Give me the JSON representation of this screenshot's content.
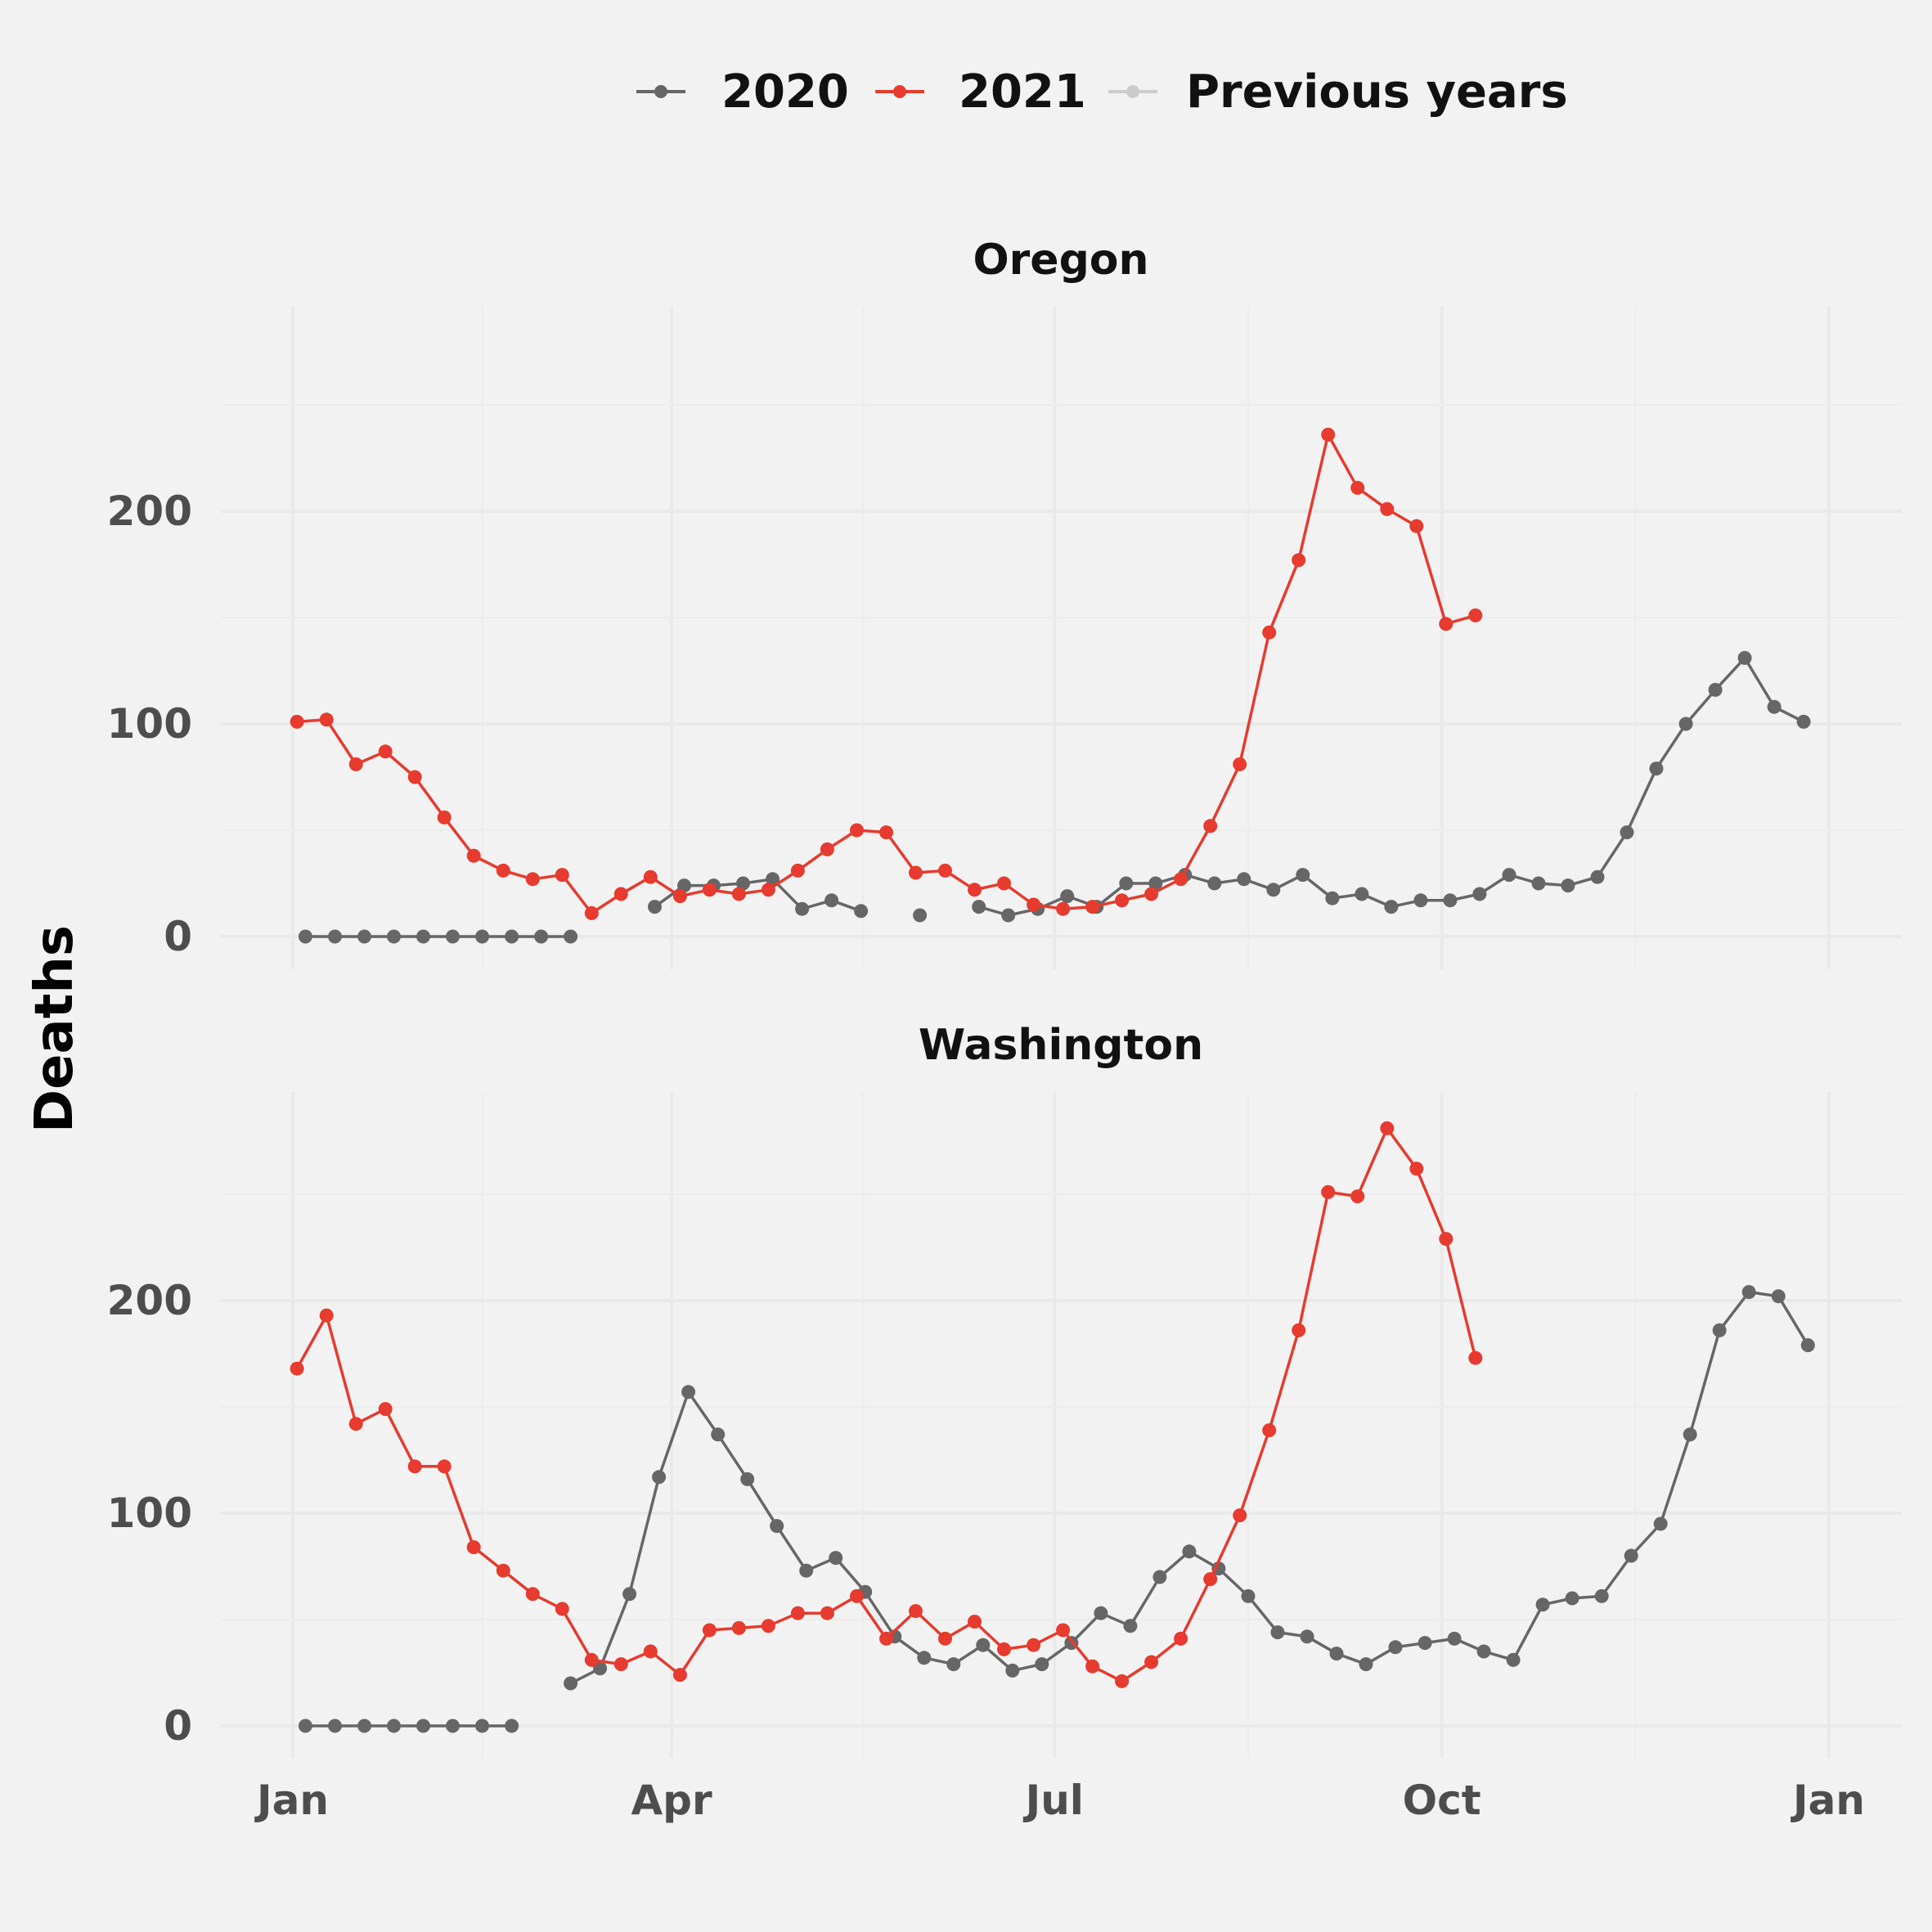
{
  "chart_data": {
    "type": "line",
    "ylabel": "Deaths",
    "xlabel": "",
    "x_axis": {
      "tick_labels": [
        "Jan",
        "Apr",
        "Jul",
        "Oct",
        "Jan"
      ],
      "tick_dates": [
        "2021-01-01",
        "2021-04-01",
        "2021-07-01",
        "2021-10-01",
        "2022-01-01"
      ]
    },
    "y_axis": {
      "tick_labels": [
        "0",
        "100",
        "200"
      ],
      "ticks": [
        0,
        100,
        200
      ],
      "ylim": [
        -15,
        295
      ]
    },
    "grid": true,
    "legend": {
      "position": "top",
      "entries": [
        {
          "label": "2020",
          "color": "#666666"
        },
        {
          "label": "2021",
          "color": "#e63b2e"
        },
        {
          "label": "Previous years",
          "color": "#cccccc"
        }
      ]
    },
    "panels": [
      {
        "title": "Oregon",
        "series": [
          {
            "name": "2020",
            "color": "#666666",
            "points": [
              [
                "2021-01-04",
                0
              ],
              [
                "2021-01-11",
                0
              ],
              [
                "2021-01-18",
                0
              ],
              [
                "2021-01-25",
                0
              ],
              [
                "2021-02-01",
                0
              ],
              [
                "2021-02-08",
                0
              ],
              [
                "2021-02-15",
                0
              ],
              [
                "2021-02-22",
                0
              ],
              [
                "2021-03-01",
                0
              ],
              [
                "2021-03-08",
                0
              ],
              null,
              [
                "2021-03-28",
                14
              ],
              [
                "2021-04-04",
                24
              ],
              [
                "2021-04-11",
                24
              ],
              [
                "2021-04-18",
                25
              ],
              [
                "2021-04-25",
                27
              ],
              [
                "2021-05-02",
                13
              ],
              [
                "2021-05-09",
                17
              ],
              [
                "2021-05-16",
                12
              ],
              null,
              [
                "2021-05-30",
                10
              ],
              null,
              [
                "2021-06-13",
                14
              ],
              [
                "2021-06-20",
                10
              ],
              [
                "2021-06-27",
                13
              ],
              [
                "2021-07-04",
                19
              ],
              [
                "2021-07-11",
                14
              ],
              [
                "2021-07-18",
                25
              ],
              [
                "2021-07-25",
                25
              ],
              [
                "2021-08-01",
                29
              ],
              [
                "2021-08-08",
                25
              ],
              [
                "2021-08-15",
                27
              ],
              [
                "2021-08-22",
                22
              ],
              [
                "2021-08-29",
                29
              ],
              [
                "2021-09-05",
                18
              ],
              [
                "2021-09-12",
                20
              ],
              [
                "2021-09-19",
                14
              ],
              [
                "2021-09-26",
                17
              ],
              [
                "2021-10-03",
                17
              ],
              [
                "2021-10-10",
                20
              ],
              [
                "2021-10-17",
                29
              ],
              [
                "2021-10-24",
                25
              ],
              [
                "2021-10-31",
                24
              ],
              [
                "2021-11-07",
                28
              ],
              [
                "2021-11-14",
                49
              ],
              [
                "2021-11-21",
                79
              ],
              [
                "2021-11-28",
                100
              ],
              [
                "2021-12-05",
                116
              ],
              [
                "2021-12-12",
                131
              ],
              [
                "2021-12-19",
                108
              ],
              [
                "2021-12-26",
                101
              ]
            ]
          },
          {
            "name": "2021",
            "color": "#e63b2e",
            "points": [
              [
                "2021-01-02",
                101
              ],
              [
                "2021-01-09",
                102
              ],
              [
                "2021-01-16",
                81
              ],
              [
                "2021-01-23",
                87
              ],
              [
                "2021-01-30",
                75
              ],
              [
                "2021-02-06",
                56
              ],
              [
                "2021-02-13",
                38
              ],
              [
                "2021-02-20",
                31
              ],
              [
                "2021-02-27",
                27
              ],
              [
                "2021-03-06",
                29
              ],
              [
                "2021-03-13",
                11
              ],
              [
                "2021-03-20",
                20
              ],
              [
                "2021-03-27",
                28
              ],
              [
                "2021-04-03",
                19
              ],
              [
                "2021-04-10",
                22
              ],
              [
                "2021-04-17",
                20
              ],
              [
                "2021-04-24",
                22
              ],
              [
                "2021-05-01",
                31
              ],
              [
                "2021-05-08",
                41
              ],
              [
                "2021-05-15",
                50
              ],
              [
                "2021-05-22",
                49
              ],
              [
                "2021-05-29",
                30
              ],
              [
                "2021-06-05",
                31
              ],
              [
                "2021-06-12",
                22
              ],
              [
                "2021-06-19",
                25
              ],
              [
                "2021-06-26",
                15
              ],
              [
                "2021-07-03",
                13
              ],
              [
                "2021-07-10",
                14
              ],
              [
                "2021-07-17",
                17
              ],
              [
                "2021-07-24",
                20
              ],
              [
                "2021-07-31",
                27
              ],
              [
                "2021-08-07",
                52
              ],
              [
                "2021-08-14",
                81
              ],
              [
                "2021-08-21",
                143
              ],
              [
                "2021-08-28",
                177
              ],
              [
                "2021-09-04",
                236
              ],
              [
                "2021-09-11",
                211
              ],
              [
                "2021-09-18",
                201
              ],
              [
                "2021-09-25",
                193
              ],
              [
                "2021-10-02",
                147
              ],
              [
                "2021-10-09",
                151
              ]
            ]
          }
        ]
      },
      {
        "title": "Washington",
        "series": [
          {
            "name": "2020",
            "color": "#666666",
            "points": [
              [
                "2021-01-04",
                0
              ],
              [
                "2021-01-11",
                0
              ],
              [
                "2021-01-18",
                0
              ],
              [
                "2021-01-25",
                0
              ],
              [
                "2021-02-01",
                0
              ],
              [
                "2021-02-08",
                0
              ],
              [
                "2021-02-15",
                0
              ],
              [
                "2021-02-22",
                0
              ],
              null,
              [
                "2021-03-08",
                20
              ],
              [
                "2021-03-15",
                27
              ],
              [
                "2021-03-22",
                62
              ],
              [
                "2021-03-29",
                117
              ],
              [
                "2021-04-05",
                157
              ],
              [
                "2021-04-12",
                137
              ],
              [
                "2021-04-19",
                116
              ],
              [
                "2021-04-26",
                94
              ],
              [
                "2021-05-03",
                73
              ],
              [
                "2021-05-10",
                79
              ],
              [
                "2021-05-17",
                63
              ],
              [
                "2021-05-24",
                42
              ],
              [
                "2021-05-31",
                32
              ],
              [
                "2021-06-07",
                29
              ],
              [
                "2021-06-14",
                38
              ],
              [
                "2021-06-21",
                26
              ],
              [
                "2021-06-28",
                29
              ],
              [
                "2021-07-05",
                39
              ],
              [
                "2021-07-12",
                53
              ],
              [
                "2021-07-19",
                47
              ],
              [
                "2021-07-26",
                70
              ],
              [
                "2021-08-02",
                82
              ],
              [
                "2021-08-09",
                74
              ],
              [
                "2021-08-16",
                61
              ],
              [
                "2021-08-23",
                44
              ],
              [
                "2021-08-30",
                42
              ],
              [
                "2021-09-06",
                34
              ],
              [
                "2021-09-13",
                29
              ],
              [
                "2021-09-20",
                37
              ],
              [
                "2021-09-27",
                39
              ],
              [
                "2021-10-04",
                41
              ],
              [
                "2021-10-11",
                35
              ],
              [
                "2021-10-18",
                31
              ],
              [
                "2021-10-25",
                57
              ],
              [
                "2021-11-01",
                60
              ],
              [
                "2021-11-08",
                61
              ],
              [
                "2021-11-15",
                80
              ],
              [
                "2021-11-22",
                95
              ],
              [
                "2021-11-29",
                137
              ],
              [
                "2021-12-06",
                186
              ],
              [
                "2021-12-13",
                204
              ],
              [
                "2021-12-20",
                202
              ],
              [
                "2021-12-27",
                179
              ]
            ]
          },
          {
            "name": "2021",
            "color": "#e63b2e",
            "points": [
              [
                "2021-01-02",
                168
              ],
              [
                "2021-01-09",
                193
              ],
              [
                "2021-01-16",
                142
              ],
              [
                "2021-01-23",
                149
              ],
              [
                "2021-01-30",
                122
              ],
              [
                "2021-02-06",
                122
              ],
              [
                "2021-02-13",
                84
              ],
              [
                "2021-02-20",
                73
              ],
              [
                "2021-02-27",
                62
              ],
              [
                "2021-03-06",
                55
              ],
              [
                "2021-03-13",
                31
              ],
              [
                "2021-03-20",
                29
              ],
              [
                "2021-03-27",
                35
              ],
              [
                "2021-04-03",
                24
              ],
              [
                "2021-04-10",
                45
              ],
              [
                "2021-04-17",
                46
              ],
              [
                "2021-04-24",
                47
              ],
              [
                "2021-05-01",
                53
              ],
              [
                "2021-05-08",
                53
              ],
              [
                "2021-05-15",
                61
              ],
              [
                "2021-05-22",
                41
              ],
              [
                "2021-05-29",
                54
              ],
              [
                "2021-06-05",
                41
              ],
              [
                "2021-06-12",
                49
              ],
              [
                "2021-06-19",
                36
              ],
              [
                "2021-06-26",
                38
              ],
              [
                "2021-07-03",
                45
              ],
              [
                "2021-07-10",
                28
              ],
              [
                "2021-07-17",
                21
              ],
              [
                "2021-07-24",
                30
              ],
              [
                "2021-07-31",
                41
              ],
              [
                "2021-08-07",
                69
              ],
              [
                "2021-08-14",
                99
              ],
              [
                "2021-08-21",
                139
              ],
              [
                "2021-08-28",
                186
              ],
              [
                "2021-09-04",
                251
              ],
              [
                "2021-09-11",
                249
              ],
              [
                "2021-09-18",
                281
              ],
              [
                "2021-09-25",
                262
              ],
              [
                "2021-10-02",
                229
              ],
              [
                "2021-10-09",
                173
              ]
            ]
          }
        ]
      }
    ]
  }
}
